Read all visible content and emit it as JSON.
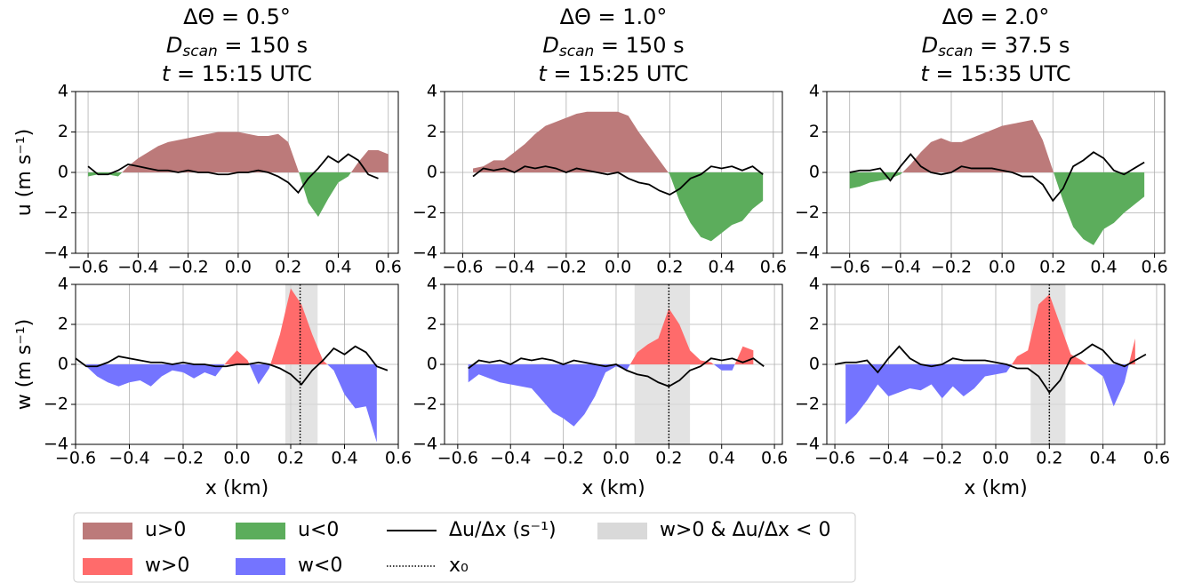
{
  "chart_data": [
    {
      "type": "area-line",
      "title": [
        "ΔΘ = 0.5°",
        [
          "D",
          "scan",
          " = 150 s"
        ],
        [
          "t",
          " = 15:15 UTC"
        ]
      ],
      "ylabel": "u (m s⁻¹)",
      "xlim": [
        -0.65,
        0.64
      ],
      "ylim": [
        -4,
        4
      ],
      "grid": true,
      "xticks": [
        {
          "value": -0.6,
          "label": "−0.6"
        },
        {
          "value": -0.4,
          "label": "−0.4"
        },
        {
          "value": -0.2,
          "label": "−0.2"
        },
        {
          "value": 0,
          "label": "0.0"
        },
        0.2,
        0.4,
        0.6
      ],
      "yticks": [
        {
          "value": -4,
          "label": "−4"
        },
        {
          "value": -2,
          "label": "−2"
        },
        0,
        2,
        4
      ],
      "x": [
        -0.6,
        -0.56,
        -0.52,
        -0.48,
        -0.44,
        -0.4,
        -0.36,
        -0.32,
        -0.28,
        -0.24,
        -0.2,
        -0.16,
        -0.12,
        -0.08,
        -0.04,
        0,
        0.04,
        0.08,
        0.12,
        0.16,
        0.2,
        0.24,
        0.28,
        0.32,
        0.36,
        0.4,
        0.44,
        0.48,
        0.52,
        0.56,
        0.6
      ],
      "area": {
        "pos_color": "#bc7a7a",
        "neg_color": "#5cad5c",
        "values": [
          -0.2,
          -0.1,
          -0.1,
          -0.2,
          0.3,
          0.7,
          1.0,
          1.3,
          1.5,
          1.6,
          1.7,
          1.8,
          1.9,
          2.0,
          2.0,
          2.0,
          1.9,
          1.8,
          1.8,
          1.9,
          1.5,
          0.1,
          -1.5,
          -2.2,
          -1.3,
          -0.5,
          -0.2,
          0.5,
          1.1,
          1.1,
          0.9
        ]
      },
      "line": {
        "color": "#000000",
        "values": [
          0.3,
          -0.1,
          -0.1,
          0.1,
          0.4,
          0.3,
          0.2,
          0.1,
          0.1,
          0.0,
          0.1,
          0.0,
          0.0,
          -0.1,
          -0.1,
          0.0,
          0.0,
          0.1,
          0.0,
          -0.2,
          -0.5,
          -1.0,
          -0.3,
          0.2,
          0.8,
          0.5,
          0.9,
          0.6,
          -0.1,
          -0.3,
          null
        ]
      }
    },
    {
      "type": "area-line",
      "title": [
        "ΔΘ = 1.0°",
        [
          "D",
          "scan",
          " = 150 s"
        ],
        [
          "t",
          " = 15:25 UTC"
        ]
      ],
      "xlim": [
        -0.67,
        0.635
      ],
      "ylim": [
        -4,
        4
      ],
      "grid": true,
      "xticks": [
        {
          "value": -0.6,
          "label": "−0.6"
        },
        {
          "value": -0.4,
          "label": "−0.4"
        },
        {
          "value": -0.2,
          "label": "−0.2"
        },
        {
          "value": 0,
          "label": "0.0"
        },
        0.2,
        0.4,
        0.6
      ],
      "yticks": [
        {
          "value": -4,
          "label": "−4"
        },
        {
          "value": -2,
          "label": "−2"
        },
        0,
        2,
        4
      ],
      "x": [
        -0.6,
        -0.56,
        -0.52,
        -0.48,
        -0.44,
        -0.4,
        -0.36,
        -0.32,
        -0.28,
        -0.24,
        -0.2,
        -0.16,
        -0.12,
        -0.08,
        -0.04,
        0,
        0.04,
        0.08,
        0.12,
        0.16,
        0.2,
        0.24,
        0.28,
        0.32,
        0.36,
        0.4,
        0.44,
        0.48,
        0.52,
        0.56,
        0.6
      ],
      "area": {
        "pos_color": "#bc7a7a",
        "neg_color": "#5cad5c",
        "values": [
          null,
          0.2,
          0.3,
          0.6,
          0.6,
          1.0,
          1.4,
          1.9,
          2.3,
          2.5,
          2.7,
          2.9,
          3.0,
          3.0,
          3.0,
          3.0,
          2.8,
          2.0,
          1.3,
          0.6,
          -0.1,
          -1.5,
          -2.5,
          -3.2,
          -3.4,
          -3.0,
          -2.6,
          -2.4,
          -1.8,
          -1.4,
          null
        ]
      },
      "line": {
        "color": "#000000",
        "values": [
          null,
          -0.2,
          0.2,
          0.1,
          0.2,
          0.0,
          0.3,
          0.2,
          0.3,
          0.2,
          0.0,
          0.2,
          0.1,
          0.0,
          -0.1,
          0.0,
          -0.3,
          -0.5,
          -0.6,
          -0.9,
          -1.1,
          -0.8,
          -0.3,
          -0.1,
          0.3,
          0.2,
          0.3,
          0.1,
          0.3,
          -0.1,
          null
        ]
      }
    },
    {
      "type": "area-line",
      "title": [
        "ΔΘ = 2.0°",
        [
          "D",
          "scan",
          " = 37.5 s"
        ],
        [
          "t",
          " = 15:35 UTC"
        ]
      ],
      "xlim": [
        -0.69,
        0.64
      ],
      "ylim": [
        -4,
        4
      ],
      "grid": true,
      "xticks": [
        {
          "value": -0.6,
          "label": "−0.6"
        },
        {
          "value": -0.4,
          "label": "−0.4"
        },
        {
          "value": -0.2,
          "label": "−0.2"
        },
        {
          "value": 0,
          "label": "0.0"
        },
        0.2,
        0.4,
        0.6
      ],
      "yticks": [
        {
          "value": -4,
          "label": "−4"
        },
        {
          "value": -2,
          "label": "−2"
        },
        0,
        2,
        4
      ],
      "x": [
        -0.6,
        -0.56,
        -0.52,
        -0.48,
        -0.44,
        -0.4,
        -0.36,
        -0.32,
        -0.28,
        -0.24,
        -0.2,
        -0.16,
        -0.12,
        -0.08,
        -0.04,
        0,
        0.04,
        0.08,
        0.12,
        0.16,
        0.2,
        0.24,
        0.28,
        0.32,
        0.36,
        0.4,
        0.44,
        0.48,
        0.52,
        0.56,
        0.6
      ],
      "area": {
        "pos_color": "#bc7a7a",
        "neg_color": "#5cad5c",
        "values": [
          -0.8,
          -0.7,
          -0.5,
          -0.4,
          -0.3,
          -0.1,
          0.4,
          1.0,
          1.5,
          1.7,
          1.5,
          1.5,
          1.7,
          1.9,
          2.1,
          2.3,
          2.4,
          2.5,
          2.6,
          1.6,
          0.1,
          -1.4,
          -2.7,
          -3.3,
          -3.6,
          -2.8,
          -2.5,
          -2.0,
          -1.6,
          -1.2,
          null
        ]
      },
      "line": {
        "color": "#000000",
        "values": [
          0.0,
          0.1,
          0.1,
          0.2,
          -0.4,
          0.3,
          0.9,
          0.3,
          0.0,
          -0.1,
          0.0,
          0.3,
          0.2,
          0.2,
          0.2,
          0.1,
          0.0,
          -0.2,
          -0.2,
          -0.6,
          -1.4,
          -0.8,
          0.3,
          0.6,
          1.0,
          0.7,
          0.1,
          -0.1,
          0.2,
          0.5,
          null
        ]
      }
    },
    {
      "type": "area-line",
      "ylabel": "w (m s⁻¹)",
      "xlabel": "x (km)",
      "xlim": [
        -0.6,
        0.6
      ],
      "ylim": [
        -4,
        4
      ],
      "grid": true,
      "xticks": [
        {
          "value": -0.6,
          "label": "−0.6"
        },
        {
          "value": -0.4,
          "label": "−0.4"
        },
        {
          "value": -0.2,
          "label": "−0.2"
        },
        {
          "value": 0,
          "label": "0.0"
        },
        0.2,
        0.4,
        0.6
      ],
      "yticks": [
        {
          "value": -4,
          "label": "−4"
        },
        {
          "value": -2,
          "label": "−2"
        },
        0,
        2,
        4
      ],
      "x": [
        -0.6,
        -0.56,
        -0.52,
        -0.48,
        -0.44,
        -0.4,
        -0.36,
        -0.32,
        -0.28,
        -0.24,
        -0.2,
        -0.16,
        -0.12,
        -0.08,
        -0.04,
        0,
        0.04,
        0.08,
        0.12,
        0.16,
        0.2,
        0.24,
        0.28,
        0.32,
        0.36,
        0.4,
        0.44,
        0.48,
        0.52,
        0.56,
        0.6
      ],
      "span": [
        0.18,
        0.3
      ],
      "span_color": "#d9d9d9",
      "x0": 0.235,
      "area": {
        "pos_color": "#ff6b6b",
        "neg_color": "#7474ff",
        "values": [
          null,
          -0.1,
          -0.6,
          -0.9,
          -1.1,
          -0.9,
          -0.8,
          -1.1,
          -0.6,
          -0.3,
          -0.4,
          -0.7,
          -0.4,
          -0.6,
          0.1,
          0.7,
          0.2,
          -1.0,
          -0.2,
          1.5,
          3.8,
          3.0,
          1.5,
          0.2,
          -0.3,
          -1.5,
          -2.2,
          -2.1,
          -3.9,
          null,
          null
        ]
      },
      "line": {
        "color": "#000000",
        "values": [
          0.3,
          -0.1,
          -0.1,
          0.1,
          0.4,
          0.3,
          0.2,
          0.1,
          0.1,
          0.0,
          0.1,
          0.0,
          0.0,
          -0.1,
          -0.1,
          0.0,
          0.0,
          0.1,
          0.0,
          -0.2,
          -0.5,
          -1.0,
          -0.3,
          0.2,
          0.8,
          0.5,
          0.9,
          0.6,
          -0.1,
          -0.3,
          null
        ]
      }
    },
    {
      "type": "area-line",
      "xlabel": "x (km)",
      "xlim": [
        -0.65,
        0.63
      ],
      "ylim": [
        -4,
        4
      ],
      "grid": true,
      "xticks": [
        {
          "value": -0.6,
          "label": "−0.6"
        },
        {
          "value": -0.4,
          "label": "−0.4"
        },
        {
          "value": -0.2,
          "label": "−0.2"
        },
        {
          "value": 0,
          "label": "0.0"
        },
        0.2,
        0.4,
        0.6
      ],
      "yticks": [
        {
          "value": -4,
          "label": "−4"
        },
        {
          "value": -2,
          "label": "−2"
        },
        0,
        2,
        4
      ],
      "x": [
        -0.6,
        -0.56,
        -0.52,
        -0.48,
        -0.44,
        -0.4,
        -0.36,
        -0.32,
        -0.28,
        -0.24,
        -0.2,
        -0.16,
        -0.12,
        -0.08,
        -0.04,
        0,
        0.04,
        0.08,
        0.12,
        0.16,
        0.2,
        0.24,
        0.28,
        0.32,
        0.36,
        0.4,
        0.44,
        0.48,
        0.52,
        0.56,
        0.6
      ],
      "span": [
        0.07,
        0.28
      ],
      "span_color": "#d9d9d9",
      "x0": 0.2,
      "area": {
        "pos_color": "#ff6b6b",
        "neg_color": "#7474ff",
        "values": [
          null,
          -0.9,
          -0.5,
          -0.7,
          -0.9,
          -1.0,
          -1.1,
          -1.2,
          -1.8,
          -2.4,
          -2.7,
          -3.1,
          -2.5,
          -1.6,
          -0.4,
          -0.1,
          -0.3,
          0.6,
          1.0,
          1.3,
          2.8,
          2.0,
          0.7,
          0.2,
          0.1,
          -0.3,
          -0.3,
          0.9,
          0.7,
          null,
          null
        ]
      },
      "line": {
        "color": "#000000",
        "values": [
          null,
          -0.2,
          0.2,
          0.1,
          0.2,
          0.0,
          0.3,
          0.2,
          0.3,
          0.2,
          0.0,
          0.2,
          0.1,
          0.0,
          -0.1,
          0.0,
          -0.3,
          -0.5,
          -0.6,
          -0.9,
          -1.1,
          -0.8,
          -0.3,
          -0.1,
          0.3,
          0.2,
          0.3,
          0.1,
          0.3,
          -0.1,
          null
        ]
      }
    },
    {
      "type": "area-line",
      "xlabel": "x (km)",
      "xlim": [
        -0.63,
        0.63
      ],
      "ylim": [
        -4,
        4
      ],
      "grid": true,
      "xticks": [
        {
          "value": -0.6,
          "label": "−0.6"
        },
        {
          "value": -0.4,
          "label": "−0.4"
        },
        {
          "value": -0.2,
          "label": "−0.2"
        },
        {
          "value": 0,
          "label": "0.0"
        },
        0.2,
        0.4,
        0.6
      ],
      "yticks": [
        {
          "value": -4,
          "label": "−4"
        },
        {
          "value": -2,
          "label": "−2"
        },
        0,
        2,
        4
      ],
      "x": [
        -0.6,
        -0.56,
        -0.52,
        -0.48,
        -0.44,
        -0.4,
        -0.36,
        -0.32,
        -0.28,
        -0.24,
        -0.2,
        -0.16,
        -0.12,
        -0.08,
        -0.04,
        0,
        0.04,
        0.08,
        0.12,
        0.16,
        0.2,
        0.24,
        0.28,
        0.32,
        0.36,
        0.4,
        0.44,
        0.48,
        0.52,
        0.56,
        0.6
      ],
      "span": [
        0.13,
        0.26
      ],
      "span_color": "#d9d9d9",
      "x0": 0.2,
      "area": {
        "pos_color": "#ff6b6b",
        "neg_color": "#7474ff",
        "values": [
          null,
          -3.0,
          -2.5,
          -1.8,
          -1.0,
          -1.6,
          -1.4,
          -1.2,
          -1.3,
          -1.0,
          -1.7,
          -1.1,
          -1.6,
          -1.2,
          -0.6,
          -0.5,
          -0.4,
          0.4,
          0.7,
          3.0,
          3.5,
          2.0,
          0.5,
          0.2,
          -0.2,
          -0.6,
          -2.1,
          -0.9,
          1.3,
          null,
          null
        ]
      },
      "line": {
        "color": "#000000",
        "values": [
          0.0,
          0.1,
          0.1,
          0.2,
          -0.4,
          0.3,
          0.9,
          0.3,
          0.0,
          -0.1,
          0.0,
          0.3,
          0.2,
          0.2,
          0.2,
          0.1,
          0.0,
          -0.2,
          -0.2,
          -0.6,
          -1.4,
          -0.8,
          0.3,
          0.6,
          1.0,
          0.7,
          0.1,
          -0.1,
          0.2,
          0.5,
          null
        ]
      }
    }
  ],
  "legend": {
    "items": [
      {
        "label": "u>0",
        "color": "#bc7a7a",
        "kind": "patch"
      },
      {
        "label": "u<0",
        "color": "#5cad5c",
        "kind": "patch"
      },
      {
        "label": "Δu/Δx (s⁻¹)",
        "color": "#000000",
        "kind": "line"
      },
      {
        "label": "w>0 & Δu/Δx < 0",
        "color": "#d9d9d9",
        "kind": "patch"
      },
      {
        "label": "w>0",
        "color": "#ff6b6b",
        "kind": "patch"
      },
      {
        "label": "w<0",
        "color": "#7474ff",
        "kind": "patch"
      },
      {
        "label": "x₀",
        "color": "#000000",
        "kind": "dotted"
      }
    ]
  }
}
